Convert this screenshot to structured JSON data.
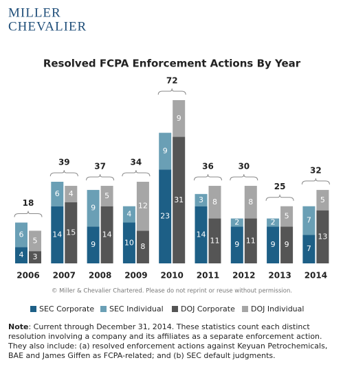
{
  "logo": [
    "MILLER",
    "CHEVALIER"
  ],
  "chart_data": {
    "type": "grouped-stacked-bar",
    "title": "Resolved FCPA Enforcement Actions By Year",
    "categories": [
      "2006",
      "2007",
      "2008",
      "2009",
      "2010",
      "2011",
      "2012",
      "2013",
      "2014"
    ],
    "series": [
      {
        "name": "SEC Corporate",
        "color": "#1d5f86",
        "stack": "SEC",
        "values": [
          4,
          14,
          9,
          10,
          23,
          14,
          9,
          9,
          7
        ]
      },
      {
        "name": "SEC Individual",
        "color": "#6a9fb5",
        "stack": "SEC",
        "values": [
          6,
          6,
          9,
          4,
          9,
          3,
          2,
          2,
          7
        ]
      },
      {
        "name": "DOJ Corporate",
        "color": "#555555",
        "stack": "DOJ",
        "values": [
          3,
          15,
          14,
          8,
          31,
          11,
          11,
          9,
          13
        ]
      },
      {
        "name": "DOJ Individual",
        "color": "#a6a6a6",
        "stack": "DOJ",
        "values": [
          5,
          4,
          5,
          12,
          9,
          8,
          8,
          5,
          5
        ]
      }
    ],
    "totals": [
      18,
      39,
      37,
      34,
      72,
      36,
      30,
      25,
      32
    ],
    "copyright": "© Miller & Chevalier Chartered. Please do not reprint or reuse without permission."
  },
  "note_label": "Note",
  "note": ": Current through December 31, 2014. These statistics count each distinct resolution involving a company and its affiliates as a separate enforcement action. They also include: (a) resolved enforcement actions against Keyuan Petrochemicals, BAE and James Giffen as FCPA-related; and (b) SEC default judgments."
}
